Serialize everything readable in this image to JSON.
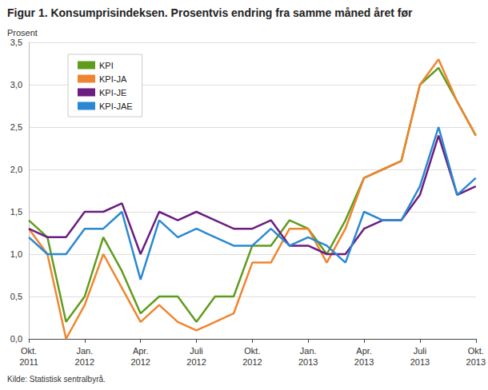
{
  "chart_data": {
    "type": "line",
    "title": "Figur 1. Konsumprisindeksen. Prosentvis endring fra samme måned året før",
    "ylabel": "Prosent",
    "source": "Kilde: Statistisk sentralbyrå.",
    "categories": [
      "Okt.\n2011",
      null,
      null,
      "Jan.\n2012",
      null,
      null,
      "Apr.\n2012",
      null,
      null,
      "Juli\n2012",
      null,
      null,
      "Okt.\n2012",
      null,
      null,
      "Jan.\n2013",
      null,
      null,
      "Apr.\n2013",
      null,
      null,
      "Juli\n2013",
      null,
      null,
      "Okt.\n2013"
    ],
    "series": [
      {
        "name": "KPI",
        "color": "#5f9c1d",
        "values": [
          1.4,
          1.2,
          0.2,
          0.5,
          1.2,
          0.8,
          0.3,
          0.5,
          0.5,
          0.2,
          0.5,
          0.5,
          1.1,
          1.1,
          1.4,
          1.3,
          1.0,
          1.4,
          1.9,
          2.0,
          2.1,
          3.0,
          3.2,
          2.8,
          2.4
        ]
      },
      {
        "name": "KPI-JA",
        "color": "#ef8530",
        "values": [
          1.3,
          1.0,
          0.0,
          0.4,
          1.0,
          0.6,
          0.2,
          0.4,
          0.2,
          0.1,
          0.2,
          0.3,
          0.9,
          0.9,
          1.3,
          1.3,
          0.9,
          1.3,
          1.9,
          2.0,
          2.1,
          3.0,
          3.3,
          2.8,
          2.4
        ]
      },
      {
        "name": "KPI-JE",
        "color": "#6b1d80",
        "values": [
          1.3,
          1.2,
          1.2,
          1.5,
          1.5,
          1.6,
          1.0,
          1.5,
          1.4,
          1.5,
          1.4,
          1.3,
          1.3,
          1.4,
          1.1,
          1.1,
          1.0,
          1.0,
          1.3,
          1.4,
          1.4,
          1.7,
          2.4,
          1.7,
          1.8
        ]
      },
      {
        "name": "KPI-JAE",
        "color": "#2a88d2",
        "values": [
          1.2,
          1.0,
          1.0,
          1.3,
          1.3,
          1.5,
          0.7,
          1.4,
          1.2,
          1.3,
          1.2,
          1.1,
          1.1,
          1.3,
          1.1,
          1.2,
          1.1,
          0.9,
          1.5,
          1.4,
          1.4,
          1.8,
          2.5,
          1.7,
          1.9
        ]
      }
    ],
    "ylim": [
      0,
      3.5
    ],
    "yticks": [
      {
        "value": 0,
        "label": "0,0"
      },
      {
        "value": 0.5,
        "label": "0,5"
      },
      {
        "value": 1,
        "label": "1,0"
      },
      {
        "value": 1.5,
        "label": "1,5"
      },
      {
        "value": 2,
        "label": "2,0"
      },
      {
        "value": 2.5,
        "label": "2,5"
      },
      {
        "value": 3,
        "label": "3,0"
      },
      {
        "value": 3.5,
        "label": "3,5"
      }
    ],
    "grid": true,
    "legend": "upper left"
  }
}
